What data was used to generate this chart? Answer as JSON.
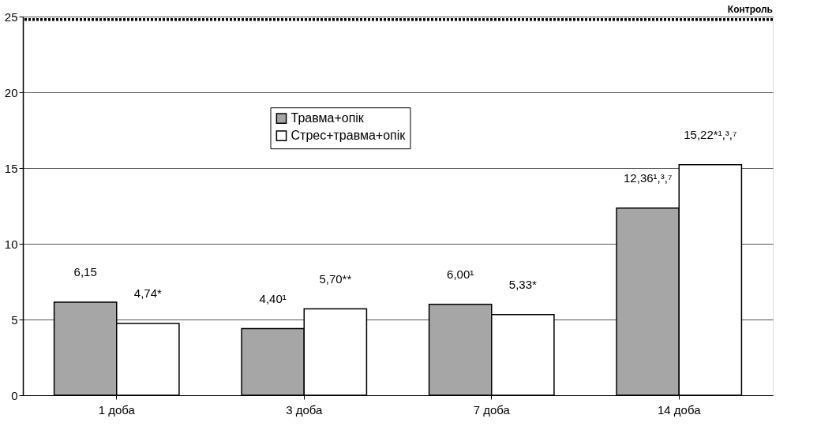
{
  "chart_data": {
    "type": "bar",
    "categories": [
      "1 доба",
      "3 доба",
      "7 доба",
      "14 доба"
    ],
    "series": [
      {
        "name": "Травма+опік",
        "color": "#a6a6a6",
        "values": [
          6.15,
          4.4,
          6.0,
          12.36
        ],
        "value_labels": [
          "6,15",
          "4,40¹",
          "6,00¹",
          "12,36¹,³,⁷"
        ]
      },
      {
        "name": "Стрес+травма+опік",
        "color": "#ffffff",
        "values": [
          4.74,
          5.7,
          5.33,
          15.22
        ],
        "value_labels": [
          "4,74*",
          "5,70**",
          "5,33*",
          "15,22*¹,³,⁷"
        ]
      }
    ],
    "ylim": [
      0,
      25
    ],
    "yticks": [
      0,
      5,
      10,
      15,
      20,
      25
    ],
    "grid": "y",
    "legend": "top",
    "ref_lines": [
      {
        "axis": "y",
        "value": 24.8,
        "label": "Контроль",
        "color": "#000000",
        "line_style": "dotted"
      }
    ]
  }
}
